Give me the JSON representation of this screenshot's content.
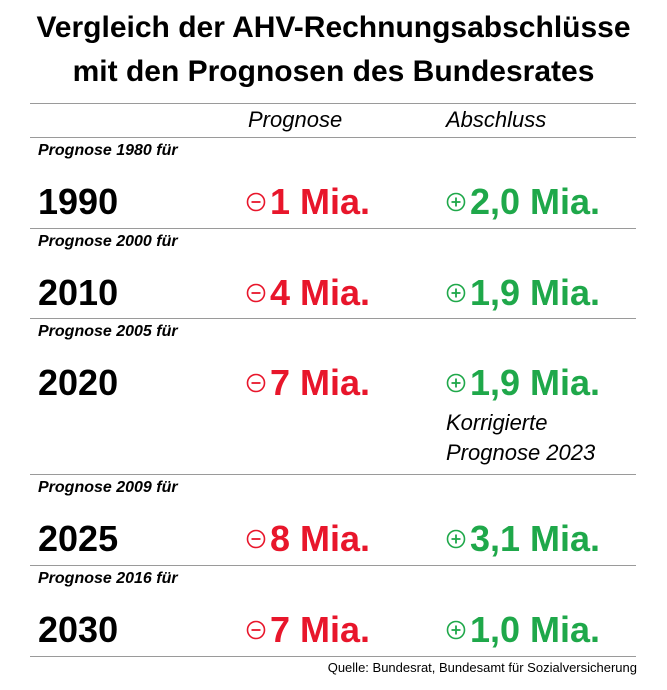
{
  "title": {
    "line1": "Vergleich der AHV-Rechnungsabschlüsse",
    "line2": "mit den Prognosen des Bundesrates"
  },
  "headers": {
    "prognose": "Prognose",
    "abschluss": "Abschluss"
  },
  "rows": [
    {
      "label": "Prognose 1980 für",
      "year": "1990",
      "prognose": "1 Mia.",
      "abschluss": "2,0 Mia."
    },
    {
      "label": "Prognose 2000 für",
      "year": "2010",
      "prognose": "4 Mia.",
      "abschluss": "1,9 Mia."
    },
    {
      "label": "Prognose 2005 für",
      "year": "2020",
      "prognose": "7 Mia.",
      "abschluss": "1,9 Mia."
    },
    {
      "label": "Prognose 2009 für",
      "year": "2025",
      "prognose": "8 Mia.",
      "abschluss": "3,1 Mia."
    },
    {
      "label": "Prognose 2016 für",
      "year": "2030",
      "prognose": "7 Mia.",
      "abschluss": "1,0 Mia."
    }
  ],
  "note": {
    "line1": "Korrigierte",
    "line2": "Prognose 2023"
  },
  "source": "Quelle: Bundesrat, Bundesamt für Sozialversicherung",
  "colors": {
    "negative": "#e8162b",
    "positive": "#1fa84a"
  },
  "icons": {
    "negative": "minus-circle-icon",
    "positive": "plus-circle-icon"
  }
}
